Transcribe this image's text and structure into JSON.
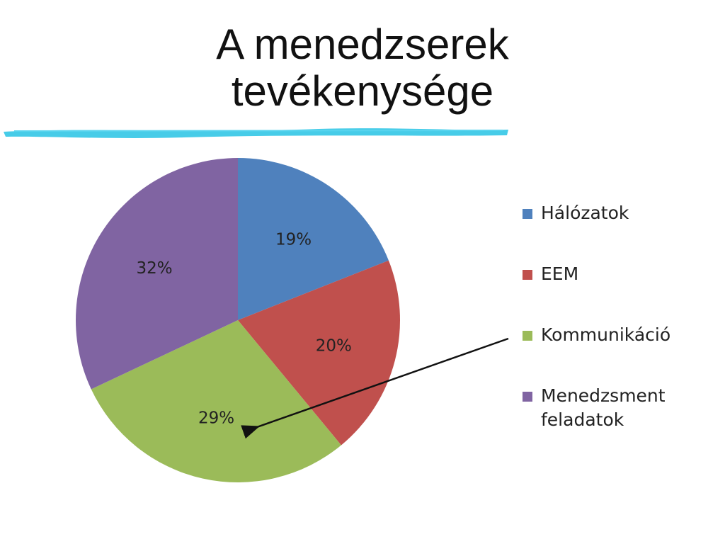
{
  "slide": {
    "title_line1": "A menedzserek",
    "title_line2": "tevékenysége",
    "accent_color": "#33c6e6"
  },
  "chart_data": {
    "type": "pie",
    "categories": [
      "Hálózatok",
      "EEM",
      "Kommunikáció",
      "Menedzsment feladatok"
    ],
    "values": [
      19,
      20,
      29,
      32
    ],
    "data_labels": [
      "19%",
      "20%",
      "29%",
      "32%"
    ],
    "colors": [
      "#4f81bd",
      "#c0504d",
      "#9bbb59",
      "#8064a2"
    ],
    "legend_position": "right",
    "annotation": "arrow from legend entry Kommunikáció to the 29% slice"
  }
}
